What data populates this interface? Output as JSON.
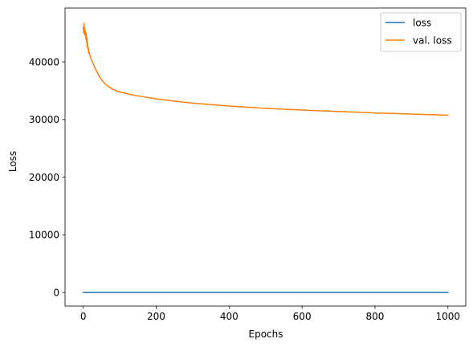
{
  "chart_data": {
    "type": "line",
    "xlabel": "Epochs",
    "ylabel": "Loss",
    "xlim": [
      -49.95,
      1048.95
    ],
    "ylim": [
      -2350,
      49350
    ],
    "xticks": [
      0,
      200,
      400,
      600,
      800,
      1000
    ],
    "yticks": [
      0,
      10000,
      20000,
      30000,
      40000
    ],
    "grid": false,
    "legend_position": "top-right",
    "series": [
      {
        "name": "loss",
        "color": "#1f77b4",
        "x": [
          0,
          1000
        ],
        "y": [
          0,
          0
        ]
      },
      {
        "name": "val. loss",
        "color": "#ff7f0e",
        "x": [
          0,
          1,
          2,
          3,
          4,
          5,
          6,
          7,
          8,
          9,
          10,
          11,
          12,
          13,
          14,
          15,
          16,
          18,
          20,
          22,
          25,
          30,
          35,
          40,
          45,
          50,
          60,
          70,
          80,
          90,
          100,
          125,
          150,
          200,
          250,
          300,
          400,
          500,
          600,
          700,
          800,
          900,
          1000
        ],
        "y": [
          46000,
          45100,
          46700,
          44800,
          45900,
          44600,
          45400,
          44000,
          44900,
          43400,
          44100,
          42700,
          43300,
          42100,
          42500,
          41500,
          41700,
          41200,
          40800,
          40400,
          40000,
          39300,
          38600,
          38000,
          37400,
          36900,
          36200,
          35700,
          35300,
          35000,
          34800,
          34400,
          34100,
          33600,
          33200,
          32850,
          32350,
          31950,
          31650,
          31400,
          31150,
          30950,
          30750
        ]
      }
    ]
  }
}
